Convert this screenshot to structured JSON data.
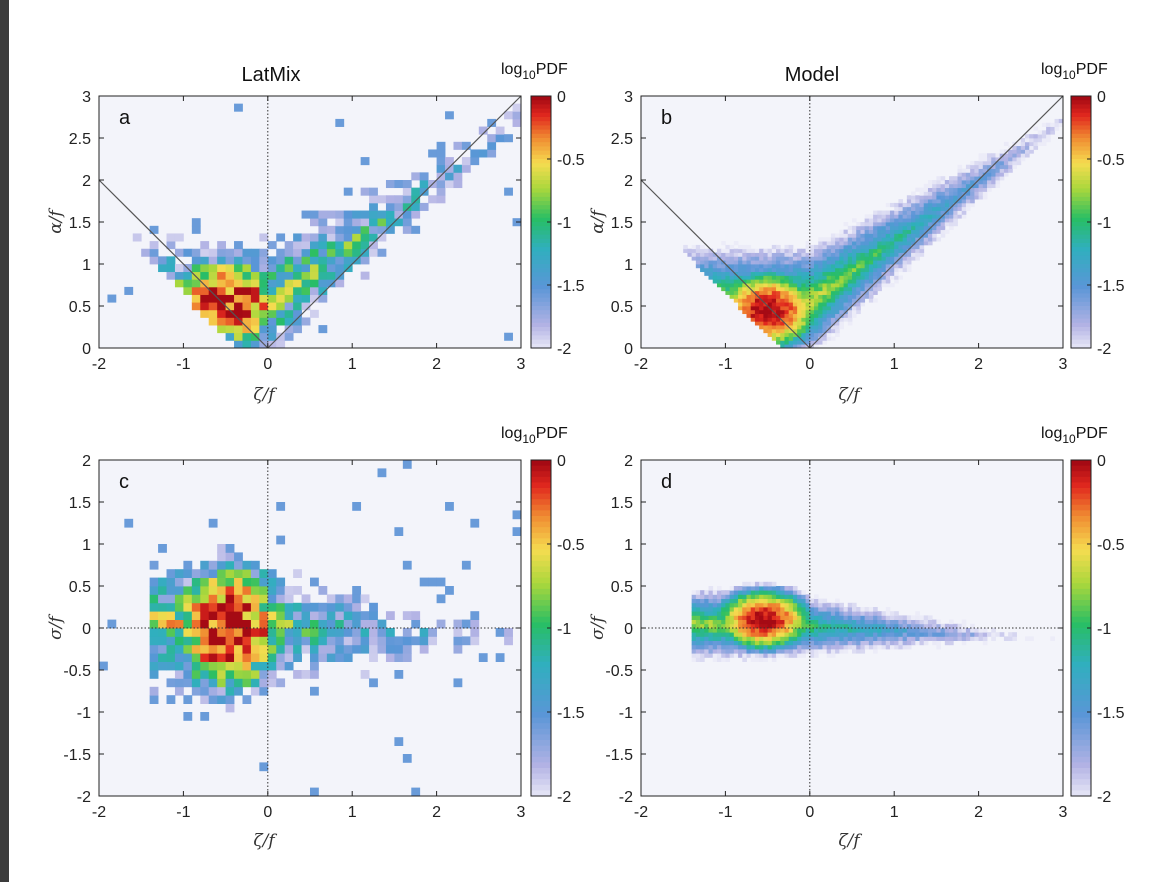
{
  "figure": {
    "column_titles": [
      "LatMix",
      "Model"
    ]
  },
  "chart_data": [
    {
      "type": "heatmap",
      "panel": "a",
      "column": "LatMix",
      "xlabel": "ζ/f",
      "ylabel": "α/f",
      "xlim": [
        -2,
        3
      ],
      "ylim": [
        0,
        3
      ],
      "xticks": [
        "-2",
        "-1",
        "0",
        "1",
        "2",
        "3"
      ],
      "yticks": [
        "0",
        "0.5",
        "1",
        "1.5",
        "2",
        "2.5",
        "3"
      ],
      "colorbar": {
        "title_base": "log",
        "title_sub": "10",
        "title_rest": "PDF",
        "range": [
          -2,
          0
        ],
        "ticks": [
          "0",
          "-0.5",
          "-1",
          "-1.5",
          "-2"
        ]
      },
      "reference_lines": [
        {
          "x": [
            -2,
            0
          ],
          "y": [
            2,
            0
          ]
        },
        {
          "x": [
            0,
            3
          ],
          "y": [
            0,
            3
          ]
        }
      ],
      "guides": [
        {
          "axis": "x",
          "value": 0
        }
      ],
      "distribution": {
        "peak": [
          -0.5,
          0.55
        ],
        "spread": [
          0.45,
          0.32
        ],
        "bins": [
          50,
          33
        ]
      }
    },
    {
      "type": "heatmap",
      "panel": "b",
      "column": "Model",
      "xlabel": "ζ/f",
      "ylabel": "α/f",
      "xlim": [
        -2,
        3
      ],
      "ylim": [
        0,
        3
      ],
      "xticks": [
        "-2",
        "-1",
        "0",
        "1",
        "2",
        "3"
      ],
      "yticks": [
        "0",
        "0.5",
        "1",
        "1.5",
        "2",
        "2.5",
        "3"
      ],
      "colorbar": {
        "title_base": "log",
        "title_sub": "10",
        "title_rest": "PDF",
        "range": [
          -2,
          0
        ],
        "ticks": [
          "0",
          "-0.5",
          "-1",
          "-1.5",
          "-2"
        ]
      },
      "reference_lines": [
        {
          "x": [
            -2,
            0
          ],
          "y": [
            2,
            0
          ]
        },
        {
          "x": [
            0,
            3
          ],
          "y": [
            0,
            3
          ]
        }
      ],
      "guides": [
        {
          "axis": "x",
          "value": 0
        }
      ],
      "distribution": {
        "peak": [
          -0.5,
          0.45
        ],
        "spread": [
          0.4,
          0.3
        ],
        "bins": [
          100,
          66
        ]
      }
    },
    {
      "type": "heatmap",
      "panel": "c",
      "column": "LatMix",
      "xlabel": "ζ/f",
      "ylabel": "σ/f",
      "xlim": [
        -2,
        3
      ],
      "ylim": [
        -2,
        2
      ],
      "xticks": [
        "-2",
        "-1",
        "0",
        "1",
        "2",
        "3"
      ],
      "yticks": [
        "-2",
        "-1.5",
        "-1",
        "-0.5",
        "0",
        "0.5",
        "1",
        "1.5",
        "2"
      ],
      "colorbar": {
        "title_base": "log",
        "title_sub": "10",
        "title_rest": "PDF",
        "range": [
          -2,
          0
        ],
        "ticks": [
          "0",
          "-0.5",
          "-1",
          "-1.5",
          "-2"
        ]
      },
      "reference_lines": [],
      "guides": [
        {
          "axis": "x",
          "value": 0
        },
        {
          "axis": "y",
          "value": 0
        }
      ],
      "distribution": {
        "peak": [
          -0.45,
          0.0
        ],
        "spread": [
          0.4,
          0.45
        ],
        "bins": [
          50,
          40
        ]
      }
    },
    {
      "type": "heatmap",
      "panel": "d",
      "column": "Model",
      "xlabel": "ζ/f",
      "ylabel": "σ/f",
      "xlim": [
        -2,
        3
      ],
      "ylim": [
        -2,
        2
      ],
      "xticks": [
        "-2",
        "-1",
        "0",
        "1",
        "2",
        "3"
      ],
      "yticks": [
        "-2",
        "-1.5",
        "-1",
        "-0.5",
        "0",
        "0.5",
        "1",
        "1.5",
        "2"
      ],
      "colorbar": {
        "title_base": "log",
        "title_sub": "10",
        "title_rest": "PDF",
        "range": [
          -2,
          0
        ],
        "ticks": [
          "0",
          "-0.5",
          "-1",
          "-1.5",
          "-2"
        ]
      },
      "reference_lines": [],
      "guides": [
        {
          "axis": "x",
          "value": 0
        },
        {
          "axis": "y",
          "value": 0
        }
      ],
      "distribution": {
        "peak": [
          -0.55,
          0.1
        ],
        "spread": [
          0.35,
          0.22
        ],
        "bins": [
          100,
          80
        ]
      }
    }
  ]
}
